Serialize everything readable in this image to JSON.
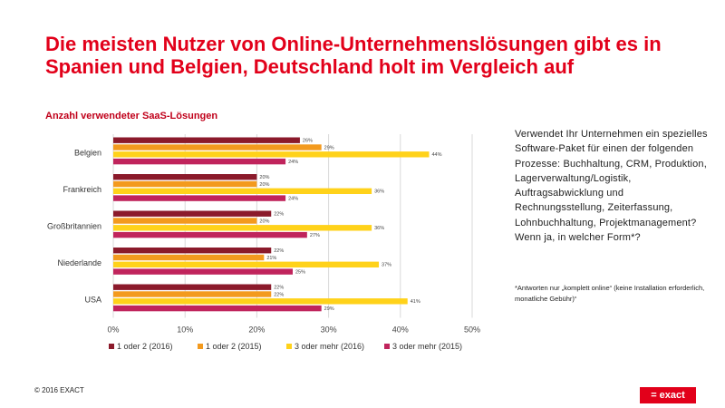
{
  "title": "Die meisten Nutzer von Online-Unternehmenslösungen gibt es in Spanien und Belgien, Deutschland holt im Vergleich auf",
  "chart_data": {
    "type": "bar",
    "orientation": "horizontal",
    "title": "Anzahl verwendeter SaaS-Lösungen",
    "categories": [
      "Belgien",
      "Frankreich",
      "Großbritannien",
      "Niederlande",
      "USA"
    ],
    "series": [
      {
        "name": "1 oder 2 (2016)",
        "color": "#8b1a2b",
        "values": [
          26,
          20,
          22,
          22,
          22
        ]
      },
      {
        "name": "1 oder 2 (2015)",
        "color": "#f39a1e",
        "values": [
          29,
          20,
          20,
          21,
          22
        ]
      },
      {
        "name": "3 oder mehr (2016)",
        "color": "#ffd21a",
        "values": [
          44,
          36,
          36,
          37,
          41
        ]
      },
      {
        "name": "3 oder mehr (2015)",
        "color": "#c0245c",
        "values": [
          24,
          24,
          27,
          25,
          29
        ]
      }
    ],
    "xlim": [
      0,
      50
    ],
    "ticks": [
      "0%",
      "10%",
      "20%",
      "30%",
      "40%",
      "50%"
    ],
    "grid": true,
    "legend": "bottom"
  },
  "question": "Verwendet Ihr Unternehmen ein spezielles Software-Paket für einen der folgenden Prozesse: Buchhaltung, CRM, Produktion, Lagerverwaltung/Logistik, Auftragsabwicklung und Rechnungsstellung, Zeiterfassung, Lohnbuchhaltung, Projektmanagement? Wenn ja, in welcher Form*?",
  "note": "*Antworten nur „komplett online“ (keine Installation erforderlich, monatliche Gebühr)“",
  "footer": {
    "copyright": "© 2016 EXACT",
    "logo": "= exact"
  }
}
